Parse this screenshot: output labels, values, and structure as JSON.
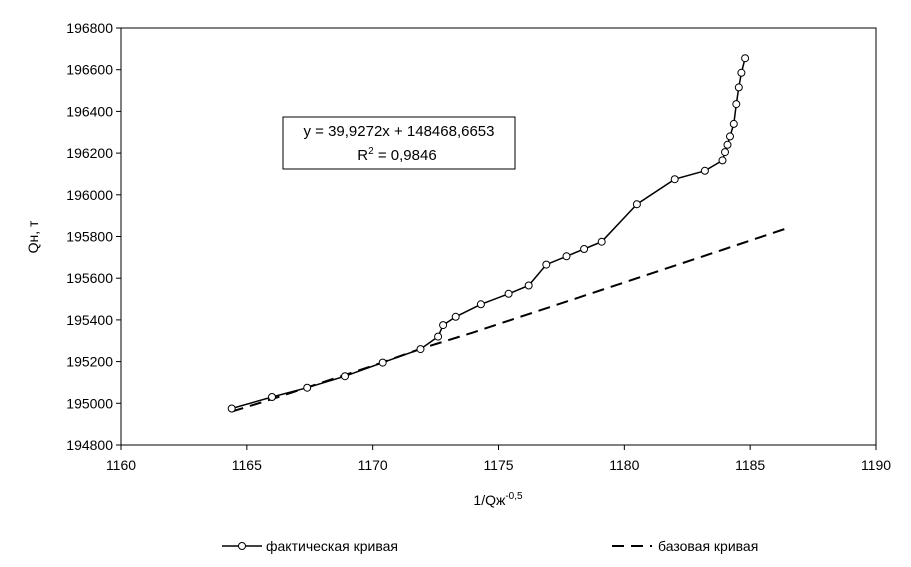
{
  "chart_data": {
    "type": "line",
    "title": "",
    "xlabel": "1/Qж",
    "xlabel_sup": "-0,5",
    "ylabel": "Qн, т",
    "xlim": [
      1160,
      1190
    ],
    "ylim": [
      194800,
      196800
    ],
    "xticks": [
      "1160",
      "1165",
      "1170",
      "1175",
      "1180",
      "1185",
      "1190"
    ],
    "yticks": [
      "194800",
      "195000",
      "195200",
      "195400",
      "195600",
      "195800",
      "196000",
      "196200",
      "196400",
      "196600",
      "196800"
    ],
    "grid": false,
    "legend_position": "bottom",
    "annotation": {
      "equation": "y = 39,9272x + 148468,6653",
      "r2_prefix": "R",
      "r2_sup": "2",
      "r2_value": " = 0,9846"
    },
    "series": [
      {
        "name": "фактическая кривая",
        "style": "solid-markers",
        "color": "#000000",
        "points": [
          [
            1164.4,
            194975
          ],
          [
            1166.0,
            195030
          ],
          [
            1167.4,
            195075
          ],
          [
            1168.9,
            195130
          ],
          [
            1170.4,
            195195
          ],
          [
            1171.9,
            195260
          ],
          [
            1172.6,
            195320
          ],
          [
            1172.8,
            195375
          ],
          [
            1173.3,
            195415
          ],
          [
            1174.3,
            195475
          ],
          [
            1175.4,
            195525
          ],
          [
            1176.2,
            195565
          ],
          [
            1176.9,
            195665
          ],
          [
            1177.7,
            195705
          ],
          [
            1178.4,
            195740
          ],
          [
            1179.1,
            195775
          ],
          [
            1180.5,
            195955
          ],
          [
            1182.0,
            196075
          ],
          [
            1183.2,
            196115
          ],
          [
            1183.9,
            196165
          ],
          [
            1184.0,
            196205
          ],
          [
            1184.1,
            196240
          ],
          [
            1184.2,
            196280
          ],
          [
            1184.35,
            196340
          ],
          [
            1184.45,
            196435
          ],
          [
            1184.55,
            196515
          ],
          [
            1184.65,
            196585
          ],
          [
            1184.8,
            196655
          ]
        ]
      },
      {
        "name": "базовая кривая",
        "style": "dashed",
        "color": "#000000",
        "points": [
          [
            1164.4,
            194960
          ],
          [
            1166.0,
            195020
          ],
          [
            1168.0,
            195100
          ],
          [
            1170.0,
            195180
          ],
          [
            1172.0,
            195265
          ],
          [
            1174.0,
            195340
          ],
          [
            1176.0,
            195420
          ],
          [
            1178.0,
            195500
          ],
          [
            1180.0,
            195580
          ],
          [
            1182.0,
            195660
          ],
          [
            1184.0,
            195740
          ],
          [
            1186.6,
            195845
          ]
        ]
      }
    ]
  }
}
